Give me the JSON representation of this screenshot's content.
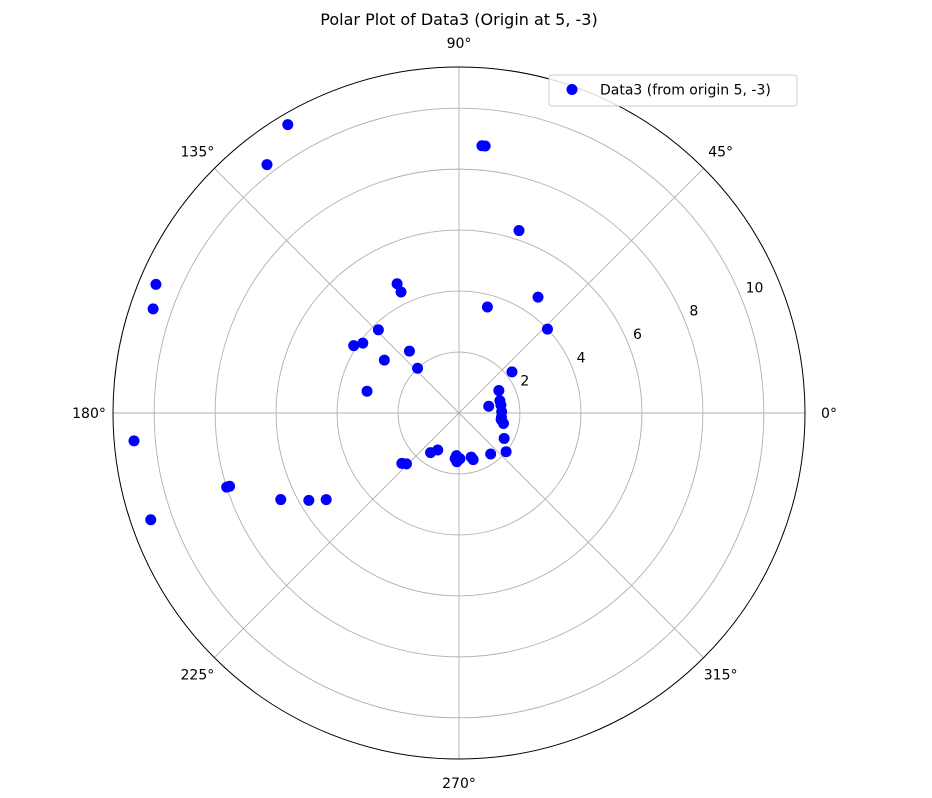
{
  "chart_data": {
    "type": "scatter",
    "projection": "polar",
    "title": "Polar Plot of Data3 (Origin at 5, -3)",
    "theta_ticks": [
      "0°",
      "45°",
      "90°",
      "135°",
      "180°",
      "225°",
      "270°",
      "315°"
    ],
    "r_ticks": [
      "2",
      "4",
      "6",
      "8",
      "10"
    ],
    "r_tick_values": [
      2,
      4,
      6,
      8,
      10
    ],
    "rlim": [
      0,
      11.35
    ],
    "grid": true,
    "legend_position": "top-right",
    "series": [
      {
        "name": "Data3 (from origin 5, -3)",
        "color": "#0000ff",
        "theta_deg": [
          84.4,
          85.1,
          71.8,
          55.7,
          127.7,
          120.7,
          115.6,
          115.6,
          43.5,
          75.0,
          37.8,
          12.8,
          161.2,
          157.0,
          134.1,
          166.7,
          147.4,
          144.0,
          144.7,
          128.7,
          132.8,
          184.9,
          199.1,
          197.7,
          197.7,
          205.9,
          213.1,
          210.2,
          234.3,
          221.4,
          224.1,
          240.1,
          265.2,
          266.6,
          267.5,
          271.2,
          285.5,
          286.9,
          307.7,
          320.6,
          330.6,
          346.8,
          354.1,
          351.0,
          1.6,
          10.8,
          16.7,
          29.4
        ],
        "r": [
          8.8,
          8.8,
          6.3,
          4.6,
          10.3,
          11.0,
          4.7,
          4.4,
          4.0,
          3.6,
          2.2,
          1.0,
          10.6,
          10.8,
          3.8,
          3.1,
          4.1,
          3.9,
          3.0,
          2.6,
          2.0,
          10.7,
          10.7,
          7.9,
          8.0,
          6.5,
          5.2,
          5.7,
          1.6,
          2.5,
          2.4,
          1.4,
          1.5,
          1.4,
          1.6,
          1.5,
          1.5,
          1.6,
          1.7,
          2.0,
          1.7,
          1.5,
          1.4,
          1.4,
          1.4,
          1.4,
          1.4,
          1.5
        ]
      }
    ]
  }
}
